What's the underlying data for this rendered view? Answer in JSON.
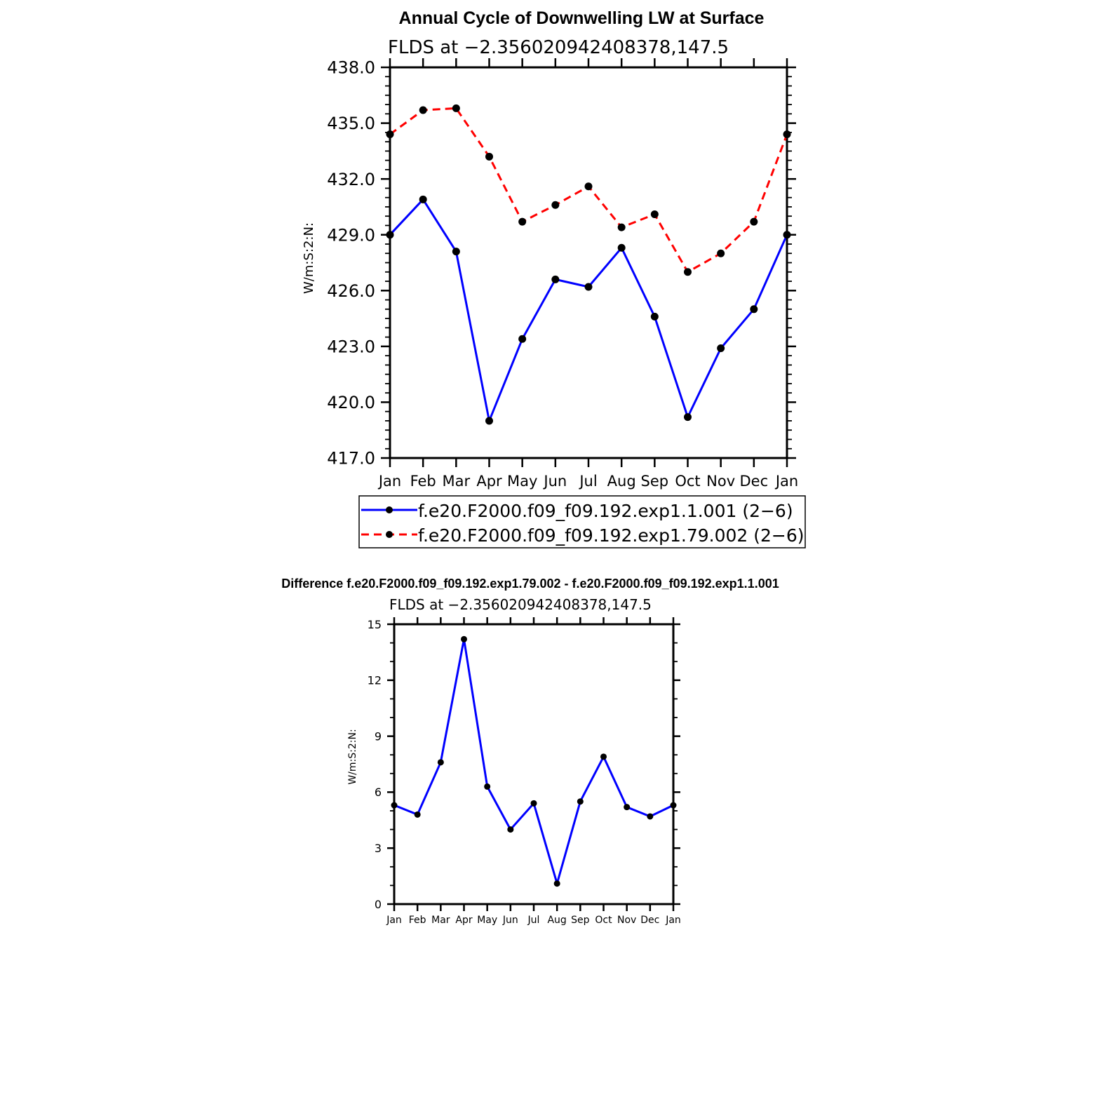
{
  "chart_data": [
    {
      "type": "line",
      "title": "Annual Cycle of Downwelling LW at Surface",
      "subtitle": "FLDS at −2.356020942408378,147.5",
      "ylabel": "W/m:S:2:N:",
      "xlabel": "",
      "categories": [
        "Jan",
        "Feb",
        "Mar",
        "Apr",
        "May",
        "Jun",
        "Jul",
        "Aug",
        "Sep",
        "Oct",
        "Nov",
        "Dec",
        "Jan"
      ],
      "ylim": [
        417.0,
        438.0
      ],
      "yticks": [
        "417.0",
        "420.0",
        "423.0",
        "426.0",
        "429.0",
        "432.0",
        "435.0",
        "438.0"
      ],
      "legend_position": "below",
      "series": [
        {
          "name": "f.e20.F2000.f09_f09.192.exp1.1.001 (2−6)",
          "color": "#0000ff",
          "dash": "solid",
          "values": [
            429.0,
            430.9,
            428.1,
            419.0,
            423.4,
            426.6,
            426.2,
            428.3,
            424.6,
            419.2,
            422.9,
            425.0,
            429.0
          ]
        },
        {
          "name": "f.e20.F2000.f09_f09.192.exp1.79.002 (2−6)",
          "color": "#ff0000",
          "dash": "dashed",
          "values": [
            434.4,
            435.7,
            435.8,
            433.2,
            429.7,
            430.6,
            431.6,
            429.4,
            430.1,
            427.0,
            428.0,
            429.7,
            434.4
          ]
        }
      ]
    },
    {
      "type": "line",
      "title": "Difference f.e20.F2000.f09_f09.192.exp1.79.002 - f.e20.F2000.f09_f09.192.exp1.1.001",
      "subtitle": "FLDS at −2.356020942408378,147.5",
      "ylabel": "W/m:S:2:N:",
      "xlabel": "",
      "categories": [
        "Jan",
        "Feb",
        "Mar",
        "Apr",
        "May",
        "Jun",
        "Jul",
        "Aug",
        "Sep",
        "Oct",
        "Nov",
        "Dec",
        "Jan"
      ],
      "ylim": [
        0,
        15
      ],
      "yticks": [
        "0",
        "3",
        "6",
        "9",
        "12",
        "15"
      ],
      "series": [
        {
          "name": "Difference",
          "color": "#0000ff",
          "dash": "solid",
          "values": [
            5.3,
            4.8,
            7.6,
            14.2,
            6.3,
            4.0,
            5.4,
            1.1,
            5.5,
            7.9,
            5.2,
            4.7,
            5.3
          ]
        }
      ]
    }
  ]
}
